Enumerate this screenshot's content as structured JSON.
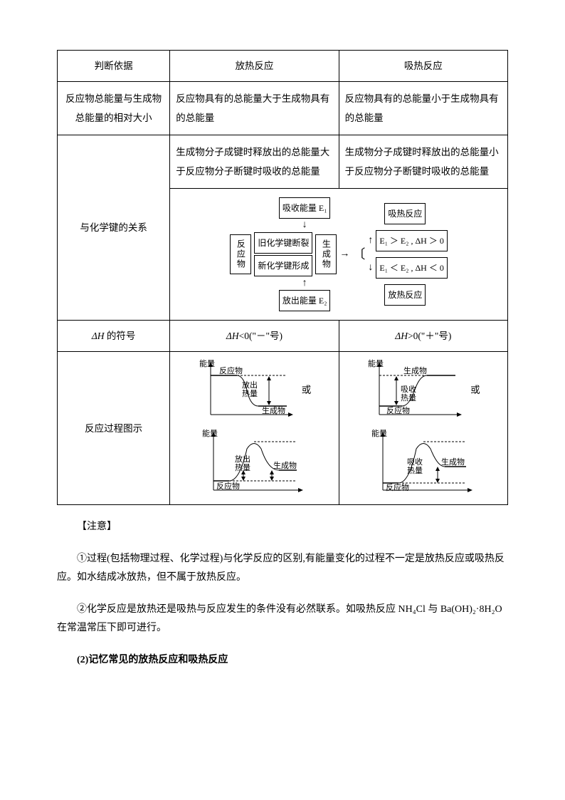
{
  "table": {
    "header": {
      "c1": "判断依据",
      "c2": "放热反应",
      "c3": "吸热反应"
    },
    "row1": {
      "c1": "反应物总能量与生成物总能量的相对大小",
      "c2": "反应物具有的总能量大于生成物具有的总能量",
      "c3": "反应物具有的总能量小于生成物具有的总能量"
    },
    "row2": {
      "c1": "与化学键的关系",
      "c2": "生成物分子成键时释放出的总能量大于反应物分子断键时吸收的总能量",
      "c3": "生成物分子成键时释放出的总能量小于反应物分子断键时吸收的总能量"
    },
    "flow": {
      "absorb": "吸收能量 E₁",
      "reactant": "反应物",
      "break": "旧化学键断裂",
      "form": "新化学键形成",
      "product": "生成物",
      "release": "放出能量 E₂",
      "endo": "吸热反应",
      "cond1": "E₁ ＞ E₂ , ΔH ＞ 0",
      "cond2": "E₁ ＜ E₂ , ΔH ＜ 0",
      "exo": "放热反应"
    },
    "row3": {
      "c1": "ΔH 的符号",
      "c2": "ΔH<0(\"－\"号)",
      "c3": "ΔH>0(\"＋\"号)"
    },
    "row4": {
      "c1": "反应过程图示",
      "or": "或"
    },
    "graph": {
      "ylabel": "能量",
      "reactant": "反应物",
      "product": "生成物",
      "release": "放出热量",
      "absorb": "吸收热量"
    }
  },
  "notes": {
    "title": "【注意】",
    "p1": "①过程(包括物理过程、化学过程)与化学反应的区别,有能量变化的过程不一定是放热反应或吸热反应。如水结成冰放热，但不属于放热反应。",
    "p2": "②化学反应是放热还是吸热与反应发生的条件没有必然联系。如吸热反应 NH₄Cl 与 Ba(OH)₂·8H₂O 在常温常压下即可进行。",
    "p3": "(2)记忆常见的放热反应和吸热反应"
  },
  "style": {
    "text_color": "#000000",
    "bg_color": "#ffffff",
    "border_color": "#000000",
    "font_size_body": 14,
    "font_size_table": 13.5,
    "font_size_flow": 12
  }
}
